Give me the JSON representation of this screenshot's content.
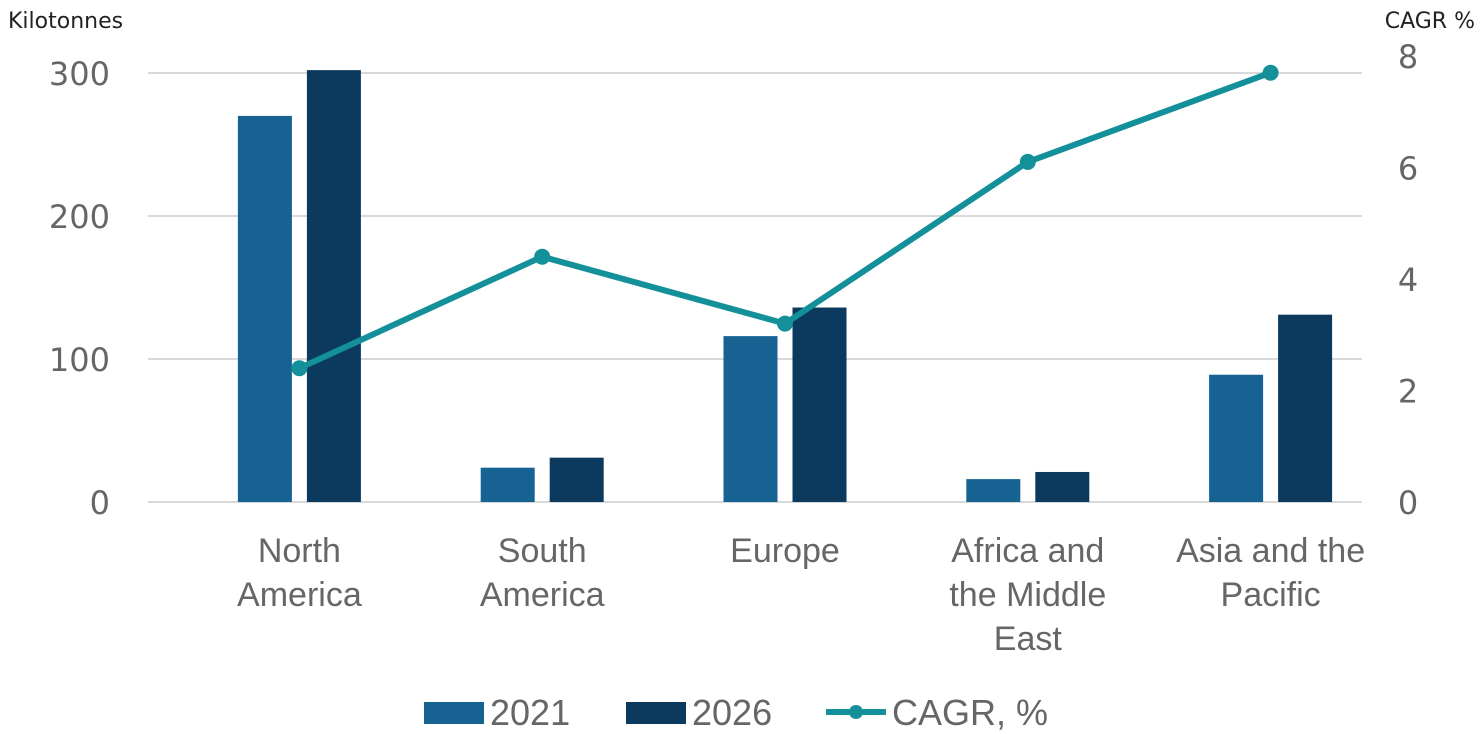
{
  "chart_data": {
    "type": "bar",
    "title": "",
    "categories": [
      [
        "North",
        "America"
      ],
      [
        "South",
        "America"
      ],
      [
        "Europe"
      ],
      [
        "Africa and",
        "the Middle",
        "East"
      ],
      [
        "Asia and the",
        "Pacific"
      ]
    ],
    "category_names": [
      "North America",
      "South America",
      "Europe",
      "Africa and the Middle East",
      "Asia and the Pacific"
    ],
    "series": [
      {
        "name": "2021",
        "type": "bar",
        "axis": "left",
        "color": "#156293",
        "values": [
          270,
          24,
          116,
          16,
          89
        ]
      },
      {
        "name": "2026",
        "type": "bar",
        "axis": "left",
        "color": "#0b3a5e",
        "values": [
          302,
          31,
          136,
          21,
          131
        ]
      },
      {
        "name": "CAGR, %",
        "type": "line",
        "axis": "right",
        "color": "#13909a",
        "values": [
          2.4,
          4.4,
          3.2,
          6.1,
          7.7
        ]
      }
    ],
    "left_axis": {
      "label": "Kilotonnes",
      "ylim": [
        0,
        300
      ],
      "ticks": [
        "0",
        "100",
        "200",
        "300"
      ],
      "tick_values": [
        0,
        100,
        200,
        300
      ]
    },
    "right_axis": {
      "label": "CAGR %",
      "ylim": [
        0,
        8
      ],
      "ticks": [
        "0",
        "2",
        "4",
        "6",
        "8"
      ],
      "tick_values": [
        0,
        2,
        4,
        6,
        8
      ]
    },
    "grid": true,
    "legend": {
      "position": "bottom",
      "entries": [
        "2021",
        "2026",
        "CAGR, %"
      ]
    }
  }
}
